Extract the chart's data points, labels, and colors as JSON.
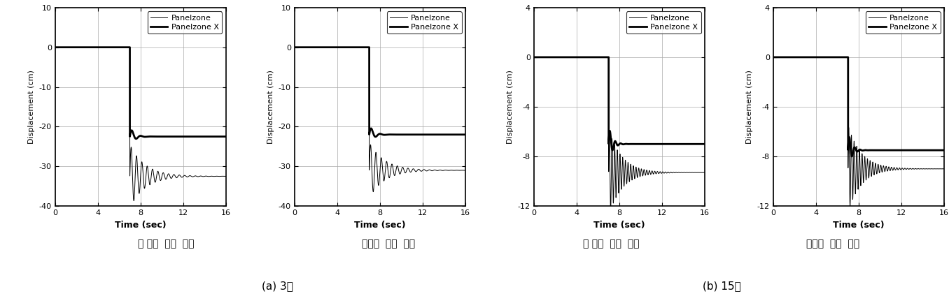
{
  "plots": [
    {
      "subtitle": "두 번째  기둥  제거",
      "ylabel": "Displacement (cm)",
      "xlabel": "Time (sec)",
      "ylim": [
        -40,
        10
      ],
      "yticks": [
        -40,
        -30,
        -20,
        -10,
        0,
        10
      ],
      "xlim": [
        0,
        16
      ],
      "xticks": [
        0,
        4,
        8,
        12,
        16
      ],
      "drop_time": 7.0,
      "thin_settle": -32.5,
      "thick_settle": -22.5,
      "thin_amplitude": 8.0,
      "thick_amplitude": 2.5,
      "thin_freq": 2.0,
      "thick_freq": 1.2,
      "thin_damping": 0.7,
      "thick_damping": 2.5
    },
    {
      "subtitle": "중앙부  기둥  제거",
      "ylabel": "Displacement (cm)",
      "xlabel": "Time (sec)",
      "ylim": [
        -40,
        10
      ],
      "yticks": [
        -40,
        -30,
        -20,
        -10,
        0,
        10
      ],
      "xlim": [
        0,
        16
      ],
      "xticks": [
        0,
        4,
        8,
        12,
        16
      ],
      "drop_time": 7.0,
      "thin_settle": -31.0,
      "thick_settle": -22.0,
      "thin_amplitude": 7.0,
      "thick_amplitude": 2.5,
      "thin_freq": 2.0,
      "thick_freq": 1.2,
      "thin_damping": 0.7,
      "thick_damping": 2.5
    },
    {
      "subtitle": "두 번째  기둥  제거",
      "ylabel": "Displacement (cm)",
      "xlabel": "Time (sec)",
      "ylim": [
        -12,
        4
      ],
      "yticks": [
        -12,
        -8,
        -4,
        0,
        4
      ],
      "xlim": [
        0,
        16
      ],
      "xticks": [
        0,
        4,
        8,
        12,
        16
      ],
      "drop_time": 7.0,
      "thin_settle": -9.3,
      "thick_settle": -7.0,
      "thin_amplitude": 3.5,
      "thick_amplitude": 1.5,
      "thin_freq": 4.0,
      "thick_freq": 2.0,
      "thin_damping": 0.8,
      "thick_damping": 3.0
    },
    {
      "subtitle": "중앙부  기둥  제거",
      "ylabel": "Displacement (cm)",
      "xlabel": "Time (sec)",
      "ylim": [
        -12,
        4
      ],
      "yticks": [
        -12,
        -8,
        -4,
        0,
        4
      ],
      "xlim": [
        0,
        16
      ],
      "xticks": [
        0,
        4,
        8,
        12,
        16
      ],
      "drop_time": 7.0,
      "thin_settle": -9.0,
      "thick_settle": -7.5,
      "thin_amplitude": 3.5,
      "thick_amplitude": 1.5,
      "thin_freq": 4.0,
      "thick_freq": 2.0,
      "thin_damping": 0.8,
      "thick_damping": 3.0
    }
  ],
  "group_labels": [
    "(a) 3층",
    "(b) 15층"
  ],
  "legend_labels": [
    "Panelzone",
    "Panelzone X"
  ],
  "thin_lw": 0.7,
  "thick_lw": 2.0,
  "line_color": "#000000",
  "background_color": "#ffffff",
  "grid_color": "#aaaaaa",
  "subtitle_fontsize": 10,
  "group_label_fontsize": 11,
  "tick_labelsize": 8,
  "xlabel_fontsize": 9,
  "ylabel_fontsize": 8,
  "legend_fontsize": 8
}
